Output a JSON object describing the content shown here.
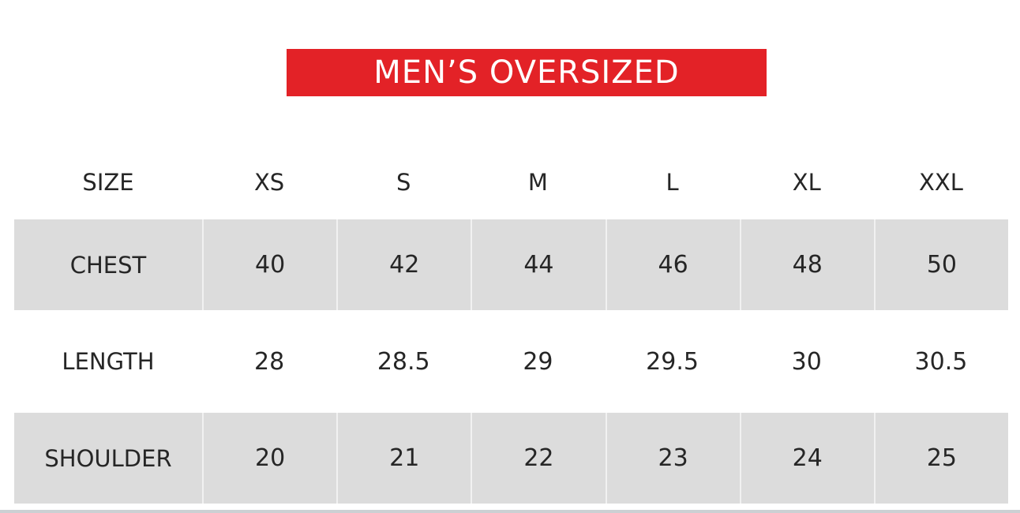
{
  "chart_data": {
    "type": "table",
    "title": "MEN’S OVERSIZED",
    "columns": [
      "SIZE",
      "XS",
      "S",
      "M",
      "L",
      "XL",
      "XXL"
    ],
    "rows": [
      [
        "CHEST",
        "40",
        "42",
        "44",
        "46",
        "48",
        "50"
      ],
      [
        "LENGTH",
        "28",
        "28.5",
        "29",
        "29.5",
        "30",
        "30.5"
      ],
      [
        "SHOULDER",
        "20",
        "21",
        "22",
        "23",
        "24",
        "25"
      ]
    ],
    "row_shading": [
      true,
      false,
      true
    ],
    "units_note": "",
    "layout": "title banner on top, header row unshaded, measurement rows alternate gray/white"
  },
  "colors": {
    "banner_bg": "#e32227",
    "banner_text": "#ffffff",
    "shaded_row_bg": "#dcdcdc",
    "cell_text": "#262626",
    "page_bg": "#ffffff",
    "footer_strip": "#ccd0d3"
  }
}
